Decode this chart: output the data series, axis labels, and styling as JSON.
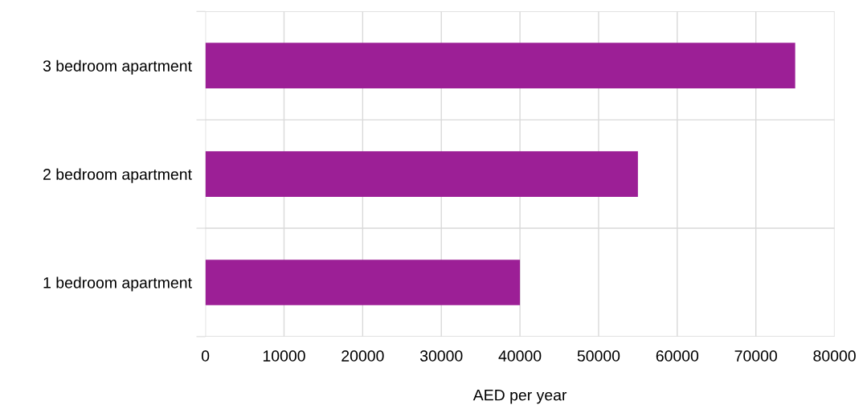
{
  "chart_data": {
    "type": "bar",
    "orientation": "horizontal",
    "xlabel": "AED per year",
    "categories": [
      "3 bedroom apartment",
      "2 bedroom apartment",
      "1 bedroom apartment"
    ],
    "values": [
      75000,
      55000,
      40000
    ],
    "color": "#9c1f96",
    "xlim": [
      0,
      80000
    ],
    "xticks": [
      0,
      10000,
      20000,
      30000,
      40000,
      50000,
      60000,
      70000,
      80000
    ],
    "grid": true
  }
}
